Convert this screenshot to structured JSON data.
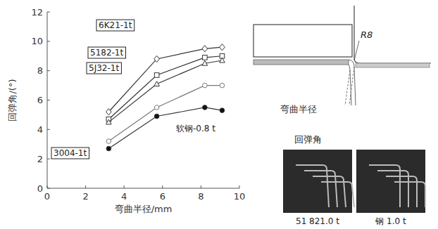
{
  "chart_data": {
    "type": "line",
    "x_label": "弯曲半径/mm",
    "y_label": "回弹角/(°)",
    "xlim": [
      0,
      10
    ],
    "xticks": [
      0,
      2,
      4,
      6,
      8,
      10
    ],
    "ylim": [
      0,
      12
    ],
    "yticks": [
      0,
      2,
      4,
      6,
      8,
      10,
      12
    ],
    "grid": false,
    "x": [
      3.2,
      5.7,
      8.2,
      9.1
    ],
    "series": [
      {
        "name": "6K21-1t",
        "color": "#333333",
        "marker": "diamond",
        "values": [
          5.2,
          8.8,
          9.5,
          9.6
        ]
      },
      {
        "name": "5182-1t",
        "color": "#333333",
        "marker": "square",
        "values": [
          4.7,
          7.7,
          8.9,
          9.0
        ]
      },
      {
        "name": "5J32-1t",
        "color": "#333333",
        "marker": "triangle",
        "values": [
          4.5,
          7.1,
          8.5,
          8.7
        ]
      },
      {
        "name": "软钢-0.8 t",
        "color": "#777777",
        "marker": "circle-open",
        "values": [
          3.2,
          5.5,
          7.0,
          7.0
        ]
      },
      {
        "name": "3004-1t",
        "color": "#333333",
        "marker": "circle",
        "values": [
          2.7,
          4.9,
          5.5,
          5.3
        ]
      }
    ]
  },
  "diagram": {
    "radius_label": "R8",
    "bend_label": "弯曲半径",
    "angle_label": "回弹角",
    "photo_labels": [
      "51 821.0 t",
      "钢 1.0 t"
    ]
  }
}
